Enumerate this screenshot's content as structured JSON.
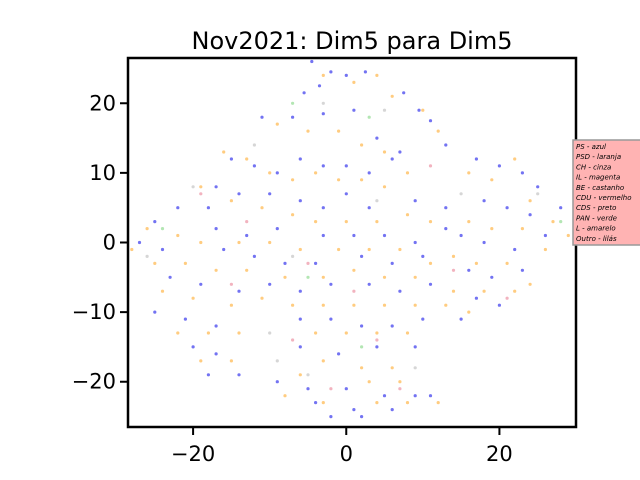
{
  "chart_data": {
    "type": "scatter",
    "title": "Nov2021: Dim5 para Dim5",
    "xlabel": "",
    "ylabel": "",
    "xlim": [
      -28.5,
      30
    ],
    "ylim": [
      -26.5,
      26.5
    ],
    "x_ticks": [
      -20,
      0,
      20
    ],
    "x_tick_labels": [
      "−20",
      "0",
      "20"
    ],
    "y_ticks": [
      -20,
      -10,
      0,
      10,
      20
    ],
    "y_tick_labels": [
      "−20",
      "−10",
      "0",
      "10",
      "20"
    ],
    "grid": false,
    "legend_position": "right, outside axes",
    "legend_background": "#ffb3b3",
    "legend_entries": [
      "PS - azul",
      "PSD - laranja",
      "CH - cinza",
      "IL - magenta",
      "BE - castanho",
      "CDU - vermelho",
      "CDS - preto",
      "PAN - verde",
      "L - amarelo",
      "Outro - lilás"
    ],
    "series": [
      {
        "color": "#4444ee",
        "points": [
          [
            -4.5,
            26
          ],
          [
            -2,
            24.5
          ],
          [
            -5.5,
            21.5
          ],
          [
            -3.5,
            22.5
          ],
          [
            0,
            24
          ],
          [
            2.5,
            24.5
          ],
          [
            7.5,
            21.5
          ],
          [
            9.5,
            19
          ],
          [
            11,
            17.5
          ],
          [
            -11,
            18
          ],
          [
            -7,
            18
          ],
          [
            -3,
            18.5
          ],
          [
            1,
            19
          ],
          [
            4,
            15
          ],
          [
            7,
            13
          ],
          [
            13,
            14
          ],
          [
            -15,
            12
          ],
          [
            -12,
            11
          ],
          [
            -9,
            10
          ],
          [
            -6,
            12
          ],
          [
            -3,
            11
          ],
          [
            0,
            11
          ],
          [
            3,
            10
          ],
          [
            6,
            12
          ],
          [
            -17,
            8
          ],
          [
            -14,
            7
          ],
          [
            -18,
            5
          ],
          [
            -10,
            7
          ],
          [
            -6,
            6
          ],
          [
            -3,
            5
          ],
          [
            0,
            7
          ],
          [
            3,
            5
          ],
          [
            9,
            6
          ],
          [
            13,
            5
          ],
          [
            -22,
            5
          ],
          [
            -25,
            3
          ],
          [
            -17,
            2
          ],
          [
            -13,
            1
          ],
          [
            -9,
            2
          ],
          [
            -3,
            1
          ],
          [
            1,
            1
          ],
          [
            5,
            1
          ],
          [
            9,
            0
          ],
          [
            13,
            2
          ],
          [
            -27,
            0
          ],
          [
            -24,
            -1
          ],
          [
            -16,
            -1
          ],
          [
            -12,
            -2
          ],
          [
            -8,
            -3
          ],
          [
            -4,
            -3
          ],
          [
            2,
            -2
          ],
          [
            6,
            -3
          ],
          [
            10,
            -2
          ],
          [
            -23,
            -5
          ],
          [
            -19,
            -6
          ],
          [
            -14,
            -7
          ],
          [
            -10,
            -6
          ],
          [
            -6,
            -7
          ],
          [
            -2,
            -6
          ],
          [
            3,
            -6
          ],
          [
            7,
            -7
          ],
          [
            11,
            -6
          ],
          [
            -25,
            -10
          ],
          [
            -21,
            -11
          ],
          [
            -17,
            -12
          ],
          [
            -6,
            -11
          ],
          [
            -2,
            -11
          ],
          [
            2,
            -12
          ],
          [
            6,
            -12
          ],
          [
            10,
            -11
          ],
          [
            -20,
            -15
          ],
          [
            -17,
            -16
          ],
          [
            -6,
            -15
          ],
          [
            -1,
            -16
          ],
          [
            4,
            -15
          ],
          [
            9,
            -15
          ],
          [
            -18,
            -19
          ],
          [
            -14,
            -19
          ],
          [
            -9,
            -20
          ],
          [
            -5,
            -21
          ],
          [
            0,
            -21
          ],
          [
            5,
            -22
          ],
          [
            9,
            -22
          ],
          [
            -4,
            -23
          ],
          [
            1,
            -24
          ],
          [
            6,
            -24
          ],
          [
            11,
            -22
          ],
          [
            -2,
            -25
          ],
          [
            2,
            -25
          ],
          [
            17,
            12
          ],
          [
            20,
            11
          ],
          [
            23,
            10
          ],
          [
            25,
            8
          ],
          [
            18,
            6
          ],
          [
            21,
            5
          ],
          [
            24,
            4
          ],
          [
            28,
            5
          ],
          [
            15,
            1
          ],
          [
            18,
            0
          ],
          [
            22,
            -1
          ],
          [
            26,
            1
          ],
          [
            16,
            -4
          ],
          [
            19,
            -5
          ],
          [
            23,
            -4
          ],
          [
            17,
            -8
          ],
          [
            20,
            -9
          ],
          [
            15,
            -11
          ]
        ]
      },
      {
        "color": "#ffbb55",
        "points": [
          [
            -3,
            24
          ],
          [
            1,
            23
          ],
          [
            4,
            24
          ],
          [
            6,
            21
          ],
          [
            10,
            19
          ],
          [
            12,
            16
          ],
          [
            -9,
            17
          ],
          [
            -5,
            16
          ],
          [
            -1,
            16
          ],
          [
            2,
            14
          ],
          [
            5,
            13
          ],
          [
            -16,
            13
          ],
          [
            -13,
            12
          ],
          [
            -10,
            10
          ],
          [
            -7,
            9
          ],
          [
            -4,
            10
          ],
          [
            -1,
            9
          ],
          [
            2,
            9
          ],
          [
            5,
            8
          ],
          [
            8,
            10
          ],
          [
            -19,
            8
          ],
          [
            -15,
            6
          ],
          [
            -11,
            5
          ],
          [
            -7,
            4
          ],
          [
            -4,
            3
          ],
          [
            0,
            3
          ],
          [
            4,
            3
          ],
          [
            8,
            4
          ],
          [
            11,
            3
          ],
          [
            -26,
            2
          ],
          [
            -22,
            1
          ],
          [
            -19,
            0
          ],
          [
            -14,
            0
          ],
          [
            -10,
            0
          ],
          [
            -6,
            -1
          ],
          [
            -1,
            -1
          ],
          [
            3,
            -1
          ],
          [
            7,
            -1
          ],
          [
            11,
            -3
          ],
          [
            -28,
            -1
          ],
          [
            -25,
            -3
          ],
          [
            -21,
            -3
          ],
          [
            -17,
            -4
          ],
          [
            -13,
            -4
          ],
          [
            -8,
            -5
          ],
          [
            -3,
            -5
          ],
          [
            1,
            -4
          ],
          [
            5,
            -5
          ],
          [
            9,
            -5
          ],
          [
            -24,
            -7
          ],
          [
            -20,
            -8
          ],
          [
            -15,
            -9
          ],
          [
            -11,
            -8
          ],
          [
            -7,
            -9
          ],
          [
            -3,
            -9
          ],
          [
            1,
            -9
          ],
          [
            5,
            -9
          ],
          [
            9,
            -9
          ],
          [
            13,
            -9
          ],
          [
            -22,
            -13
          ],
          [
            -18,
            -13
          ],
          [
            -14,
            -13
          ],
          [
            -4,
            -13
          ],
          [
            0,
            -13
          ],
          [
            4,
            -13
          ],
          [
            8,
            -13
          ],
          [
            -19,
            -17
          ],
          [
            -15,
            -17
          ],
          [
            -3,
            -17
          ],
          [
            2,
            -18
          ],
          [
            6,
            -18
          ],
          [
            -6,
            -19
          ],
          [
            3,
            -20
          ],
          [
            7,
            -20
          ],
          [
            -8,
            -22
          ],
          [
            -3,
            -23
          ],
          [
            4,
            -23
          ],
          [
            8,
            -23
          ],
          [
            12,
            -23
          ],
          [
            16,
            10
          ],
          [
            19,
            9
          ],
          [
            22,
            12
          ],
          [
            24,
            6
          ],
          [
            27,
            3
          ],
          [
            29,
            1
          ],
          [
            16,
            3
          ],
          [
            19,
            2
          ],
          [
            23,
            2
          ],
          [
            26,
            -1
          ],
          [
            14,
            -2
          ],
          [
            17,
            -3
          ],
          [
            21,
            -3
          ],
          [
            24,
            -6
          ],
          [
            14,
            -7
          ],
          [
            18,
            -7
          ],
          [
            22,
            -7
          ],
          [
            16,
            -10
          ]
        ]
      },
      {
        "color": "#c8c8c8",
        "points": [
          [
            -3,
            20
          ],
          [
            5,
            19
          ],
          [
            -12,
            14
          ],
          [
            -20,
            8
          ],
          [
            -7,
            -2
          ],
          [
            4,
            6
          ],
          [
            -26,
            -2
          ],
          [
            -10,
            -13
          ],
          [
            -9,
            -17
          ],
          [
            9,
            -18
          ],
          [
            15,
            7
          ],
          [
            25,
            7
          ],
          [
            -5,
            -19
          ]
        ]
      },
      {
        "color": "#ee99aa",
        "points": [
          [
            -19,
            7
          ],
          [
            -13,
            3
          ],
          [
            -5,
            -3
          ],
          [
            1,
            -7
          ],
          [
            -7,
            -14
          ],
          [
            4,
            -14
          ],
          [
            -2,
            -21
          ],
          [
            7,
            -21
          ],
          [
            14,
            -4
          ],
          [
            21,
            -8
          ],
          [
            11,
            11
          ],
          [
            -15,
            -6
          ]
        ]
      },
      {
        "color": "#99dd99",
        "points": [
          [
            -7,
            20
          ],
          [
            3,
            18
          ],
          [
            -24,
            2
          ],
          [
            28,
            3
          ],
          [
            2,
            -15
          ],
          [
            -5,
            -5
          ]
        ]
      }
    ]
  }
}
